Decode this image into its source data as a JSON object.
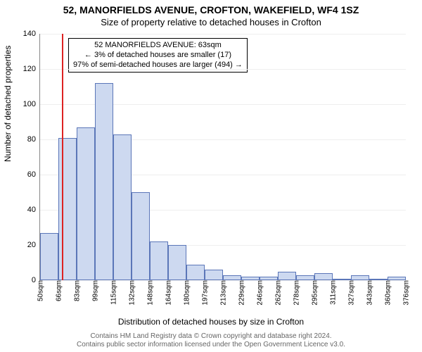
{
  "chart": {
    "type": "histogram",
    "title_line1": "52, MANORFIELDS AVENUE, CROFTON, WAKEFIELD, WF4 1SZ",
    "title_line2": "Size of property relative to detached houses in Crofton",
    "title_fontsize": 14,
    "subtitle_fontsize": 13,
    "ylabel": "Number of detached properties",
    "xlabel": "Distribution of detached houses by size in Crofton",
    "label_fontsize": 12,
    "ylim": [
      0,
      140
    ],
    "ytick_step": 20,
    "yticks": [
      0,
      20,
      40,
      60,
      80,
      100,
      120,
      140
    ],
    "xticks": [
      "50sqm",
      "66sqm",
      "83sqm",
      "99sqm",
      "115sqm",
      "132sqm",
      "148sqm",
      "164sqm",
      "180sqm",
      "197sqm",
      "213sqm",
      "229sqm",
      "246sqm",
      "262sqm",
      "278sqm",
      "295sqm",
      "311sqm",
      "327sqm",
      "343sqm",
      "360sqm",
      "376sqm"
    ],
    "values": [
      27,
      81,
      87,
      112,
      83,
      50,
      22,
      20,
      9,
      6,
      3,
      2,
      2,
      5,
      3,
      4,
      0,
      3,
      0,
      2
    ],
    "marker_value": "63sqm",
    "marker_bin_index": 1,
    "marker_fraction_in_bin": 0.2,
    "bar_color": "#cdd9f0",
    "bar_border_color": "#5b76b8",
    "marker_color": "#d22",
    "grid_color": "#eeeeee",
    "axis_color": "#888888",
    "background_color": "#ffffff",
    "annotation": {
      "line1": "52 MANORFIELDS AVENUE: 63sqm",
      "line2": "← 3% of detached houses are smaller (17)",
      "line3": "97% of semi-detached houses are larger (494) →",
      "border_color": "#000000",
      "fontsize": 11
    },
    "footnote_line1": "Contains HM Land Registry data © Crown copyright and database right 2024.",
    "footnote_line2": "Contains public sector information licensed under the Open Government Licence v3.0.",
    "footnote_color": "#666666",
    "footnote_fontsize": 10
  }
}
